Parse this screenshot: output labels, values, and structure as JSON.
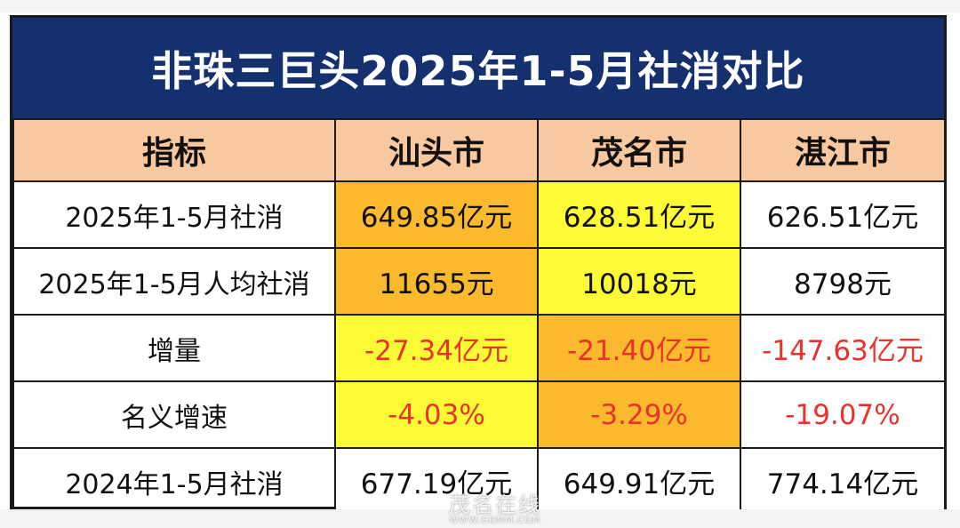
{
  "title": "非珠三巨头2025年1-5月社消对比",
  "header": {
    "label": "指标",
    "cities": [
      "汕头市",
      "茂名市",
      "湛江市"
    ]
  },
  "rows": [
    {
      "label": "2025年1-5月社消",
      "values": [
        "649.85亿元",
        "628.51亿元",
        "626.51亿元"
      ],
      "fills": [
        "orange",
        "yellow",
        "white"
      ],
      "negative": [
        false,
        false,
        false
      ]
    },
    {
      "label": "2025年1-5月人均社消",
      "values": [
        "11655元",
        "10018元",
        "8798元"
      ],
      "fills": [
        "orange",
        "yellow",
        "white"
      ],
      "negative": [
        false,
        false,
        false
      ]
    },
    {
      "label": "增量",
      "values": [
        "-27.34亿元",
        "-21.40亿元",
        "-147.63亿元"
      ],
      "fills": [
        "yellow",
        "orange",
        "white"
      ],
      "negative": [
        true,
        true,
        true
      ]
    },
    {
      "label": "名义增速",
      "values": [
        "-4.03%",
        "-3.29%",
        "-19.07%"
      ],
      "fills": [
        "yellow",
        "orange",
        "white"
      ],
      "negative": [
        true,
        true,
        true
      ]
    },
    {
      "label": "2024年1-5月社消",
      "values": [
        "677.19亿元",
        "649.91亿元",
        "774.14亿元"
      ],
      "fills": [
        "white",
        "white",
        "white"
      ],
      "negative": [
        false,
        false,
        false
      ]
    }
  ],
  "colors": {
    "title_bg": "#14306e",
    "header_bg": "#f8c8a0",
    "orange": "#fbb92e",
    "yellow": "#fdfb35",
    "negative_text": "#e8322e"
  },
  "watermark": {
    "name": "茂名在线",
    "url": "WWW.GDMM.COM"
  }
}
